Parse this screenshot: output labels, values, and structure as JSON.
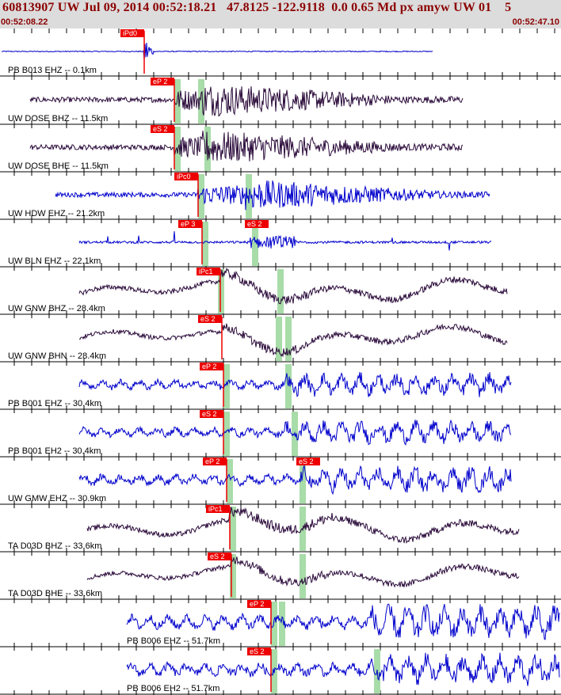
{
  "header": {
    "title": "60813907 UW Jul 09, 2014 00:52:18.21   47.8125 -122.9118  0.0 0.65 Md px amyw UW 01    5",
    "time_start": "00:52:08.22",
    "time_end": "00:52:47.10"
  },
  "colors": {
    "header_bg": "#dcdcdc",
    "header_text": "#8b0000",
    "blue_trace": "#0000cc",
    "dark_trace": "#2a0a3a",
    "pick_box": "#ee0000",
    "green_window": "#a8dca8",
    "tick": "#000000"
  },
  "traces": [
    {
      "label": "PB B013 EHZ -- 0.1km",
      "color": "blue",
      "pick": "iPd0",
      "extra_pick": ""
    },
    {
      "label": "UW DOSE BHZ -- 11.5km",
      "color": "dark",
      "pick": "eP 2",
      "extra_pick": ""
    },
    {
      "label": "UW DOSE BHE -- 11.5km",
      "color": "dark",
      "pick": "eS 2",
      "extra_pick": ""
    },
    {
      "label": "UW HDW EHZ -- 21.2km",
      "color": "blue",
      "pick": "iPc0",
      "extra_pick": ""
    },
    {
      "label": "UW BLN EHZ -- 22.1km",
      "color": "blue",
      "pick": "eP 3",
      "extra_pick": "eS 2"
    },
    {
      "label": "UW GNW BHZ -- 28.4km",
      "color": "dark",
      "pick": "iPc1",
      "extra_pick": ""
    },
    {
      "label": "UW GNW BHN -- 28.4km",
      "color": "dark",
      "pick": "eS 2",
      "extra_pick": ""
    },
    {
      "label": "PB B001 EHZ -- 30.4km",
      "color": "blue",
      "pick": "eP 2",
      "extra_pick": ""
    },
    {
      "label": "PB B001 EH2 -- 30.4km",
      "color": "blue",
      "pick": "eS 2",
      "extra_pick": ""
    },
    {
      "label": "UW GMW EHZ -- 30.9km",
      "color": "blue",
      "pick": "eP 2",
      "extra_pick": "eS 2"
    },
    {
      "label": "TA D03D BHZ -- 33.6km",
      "color": "dark",
      "pick": "iPc1",
      "extra_pick": ""
    },
    {
      "label": "TA D03D BHE -- 33.6km",
      "color": "dark",
      "pick": "eS 2",
      "extra_pick": ""
    },
    {
      "label": "PB B006 EHZ -- 51.7km",
      "color": "blue",
      "pick": "eP 2",
      "extra_pick": ""
    },
    {
      "label": "PB B006 EH2 -- 51.7km",
      "color": "blue",
      "pick": "eS 2",
      "extra_pick": ""
    }
  ]
}
